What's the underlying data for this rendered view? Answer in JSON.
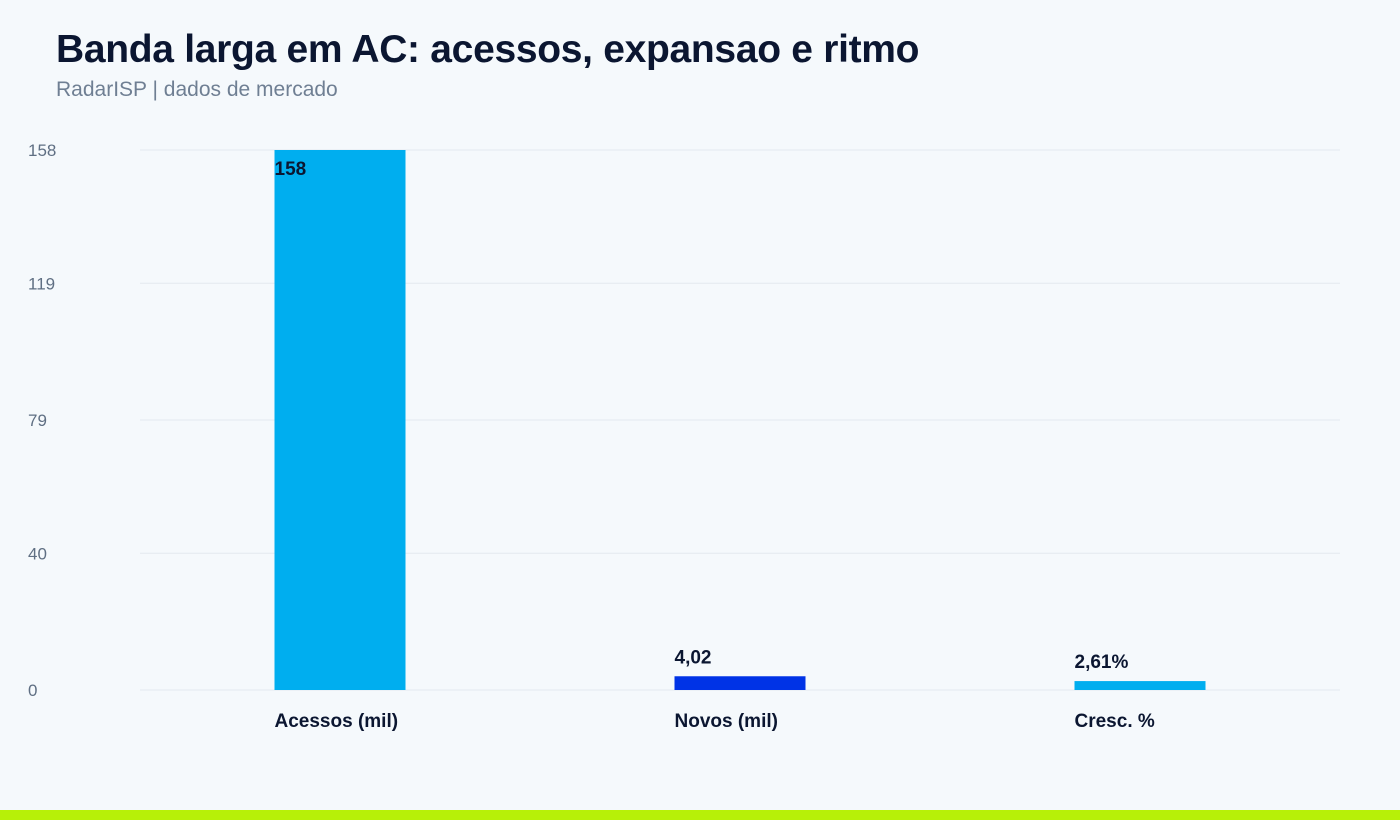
{
  "header": {
    "title": "Banda larga em AC: acessos, expansao e ritmo",
    "subtitle": "RadarISP | dados de mercado"
  },
  "colors": {
    "background": "#f5f9fc",
    "title": "#0b1631",
    "subtitle": "#6f7f93",
    "grid": "#e3e9ef",
    "tick": "#5f6f83",
    "label": "#0b1631",
    "accent_strip": "#b7f008"
  },
  "chart_data": {
    "type": "bar",
    "title": "Banda larga em AC: acessos, expansao e ritmo",
    "subtitle": "RadarISP | dados de mercado",
    "xlabel": "",
    "ylabel": "",
    "ylim": [
      0,
      158
    ],
    "yticks": [
      0,
      40,
      79,
      119,
      158
    ],
    "grid": true,
    "categories": [
      "Acessos (mil)",
      "Novos (mil)",
      "Cresc. %"
    ],
    "values": [
      158,
      4.02,
      2.61
    ],
    "value_labels": [
      "158",
      "4,02",
      "2,61%"
    ],
    "bar_colors": [
      "#00aeef",
      "#0033e6",
      "#00aeef"
    ]
  }
}
